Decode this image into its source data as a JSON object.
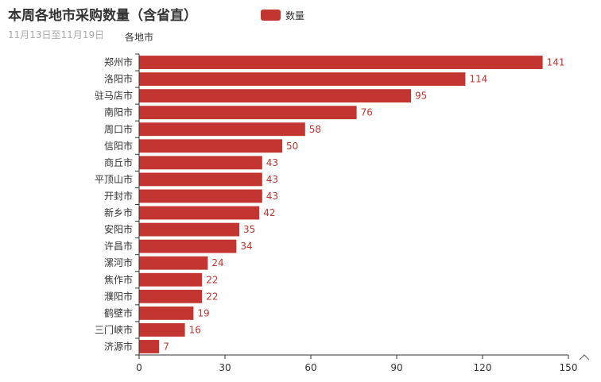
{
  "chart_data": {
    "type": "bar",
    "orientation": "horizontal",
    "title": "本周各地市采购数量（含省直）",
    "subtitle": "11月13日至11月19日",
    "ylabel": "各地市",
    "xlabel": "",
    "legend": {
      "position": "top",
      "items": [
        {
          "name": "数量",
          "color": "#c23531"
        }
      ]
    },
    "color": "#c23531",
    "xlim": [
      0,
      150
    ],
    "xticks": [
      0,
      30,
      60,
      90,
      120,
      150
    ],
    "grid": false,
    "categories": [
      "郑州市",
      "洛阳市",
      "驻马店市",
      "南阳市",
      "周口市",
      "信阳市",
      "商丘市",
      "平顶山市",
      "开封市",
      "新乡市",
      "安阳市",
      "许昌市",
      "漯河市",
      "焦作市",
      "濮阳市",
      "鹤壁市",
      "三门峡市",
      "济源市"
    ],
    "series": [
      {
        "name": "数量",
        "values": [
          141,
          114,
          95,
          76,
          58,
          50,
          43,
          43,
          43,
          42,
          35,
          34,
          24,
          22,
          22,
          19,
          16,
          7
        ]
      }
    ],
    "corner_icon": "chevron-up-icon"
  }
}
